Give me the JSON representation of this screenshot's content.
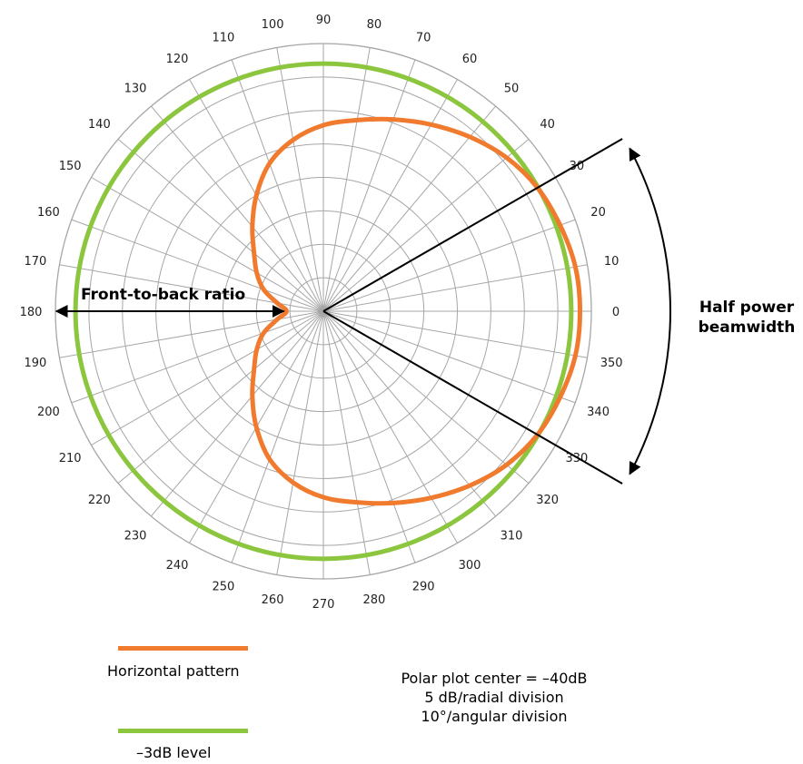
{
  "chart_data": {
    "type": "polar",
    "angle_tick_labels": [
      "0",
      "10",
      "20",
      "30",
      "40",
      "50",
      "60",
      "70",
      "80",
      "90",
      "100",
      "110",
      "120",
      "130",
      "140",
      "150",
      "160",
      "170",
      "180",
      "190",
      "200",
      "210",
      "220",
      "230",
      "240",
      "250",
      "260",
      "270",
      "280",
      "290",
      "300",
      "310",
      "320",
      "330",
      "340",
      "350"
    ],
    "angle_tick_values": [
      0,
      10,
      20,
      30,
      40,
      50,
      60,
      70,
      80,
      90,
      100,
      110,
      120,
      130,
      140,
      150,
      160,
      170,
      180,
      190,
      200,
      210,
      220,
      230,
      240,
      250,
      260,
      270,
      280,
      290,
      300,
      310,
      320,
      330,
      340,
      350
    ],
    "radial_range_db": [
      -40,
      0
    ],
    "radial_division_db": 5,
    "angular_division_deg": 10,
    "grid": true,
    "series": [
      {
        "name": "Horizontal pattern",
        "color": "#f07a2e",
        "angles_deg": [
          0,
          10,
          20,
          30,
          40,
          50,
          60,
          70,
          80,
          90,
          100,
          110,
          120,
          130,
          140,
          150,
          160,
          170,
          180,
          190,
          200,
          210,
          220,
          230,
          240,
          250,
          260,
          270,
          280,
          290,
          300,
          310,
          320,
          330,
          340,
          350
        ],
        "values_db": [
          -1.7,
          -1.8,
          -2.4,
          -3.1,
          -4.3,
          -6.0,
          -7.8,
          -9.5,
          -11.0,
          -12.2,
          -14.0,
          -16.5,
          -20.0,
          -23.5,
          -26.5,
          -28.5,
          -30.5,
          -33.0,
          -34.5,
          -33.0,
          -30.5,
          -28.5,
          -26.5,
          -23.5,
          -20.0,
          -16.5,
          -14.0,
          -12.2,
          -11.0,
          -9.5,
          -7.8,
          -6.0,
          -4.3,
          -3.1,
          -2.4,
          -1.8
        ]
      },
      {
        "name": "–3dB level",
        "color": "#8cc63f",
        "constant_db": -3
      }
    ],
    "annotations": {
      "front_to_back": "Front-to-back ratio",
      "half_power_line1": "Half power",
      "half_power_line2": "beamwidth",
      "beamwidth_edge_angles_deg": [
        30,
        -30
      ]
    }
  },
  "legend": {
    "pattern_label": "Horizontal pattern",
    "level_label": "–3dB level"
  },
  "notes": {
    "line1": "Polar plot center = –40dB",
    "line2": "5 dB/radial division",
    "line3": "10°/angular division"
  },
  "colors": {
    "pattern": "#f07a2e",
    "level": "#8cc63f",
    "grid": "#a6a6a6"
  }
}
